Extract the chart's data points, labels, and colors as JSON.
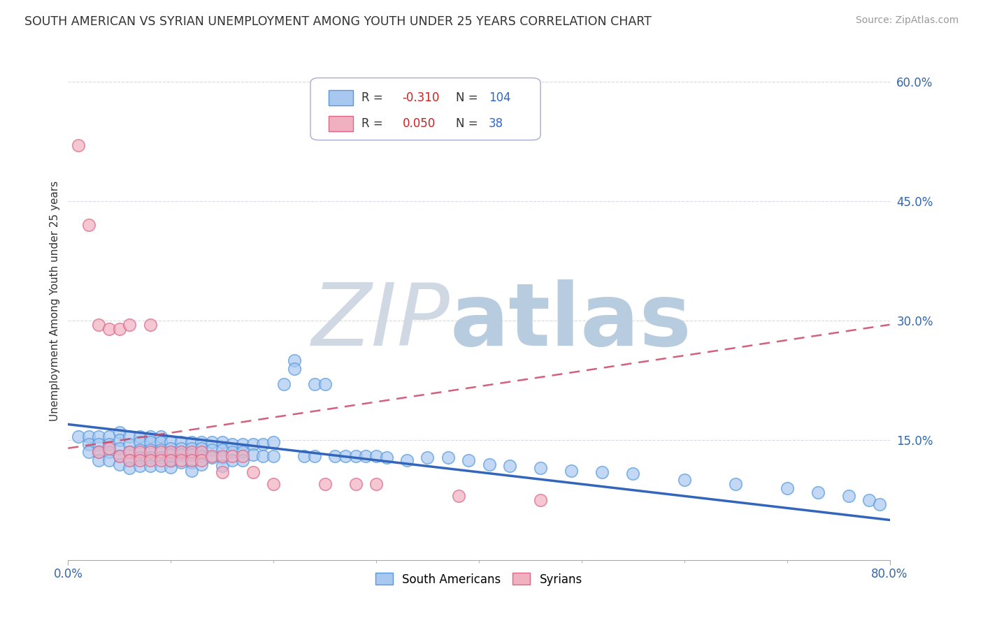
{
  "title": "SOUTH AMERICAN VS SYRIAN UNEMPLOYMENT AMONG YOUTH UNDER 25 YEARS CORRELATION CHART",
  "source": "Source: ZipAtlas.com",
  "ylabel": "Unemployment Among Youth under 25 years",
  "xlim": [
    0.0,
    0.8
  ],
  "ylim": [
    0.0,
    0.65
  ],
  "ytick_labels": [
    "60.0%",
    "45.0%",
    "30.0%",
    "15.0%"
  ],
  "ytick_vals": [
    0.6,
    0.45,
    0.3,
    0.15
  ],
  "grid_color": "#d8d8e8",
  "background_color": "#ffffff",
  "watermark_color_zip": "#d0d8e8",
  "watermark_color_atlas": "#b8cce0",
  "series": [
    {
      "name": "South Americans",
      "R": -0.31,
      "N": 104,
      "color": "#a8c8f0",
      "edge_color": "#5599dd",
      "trend_color": "#3366bb",
      "trend_dash": "solid"
    },
    {
      "name": "Syrians",
      "R": 0.05,
      "N": 38,
      "color": "#f0b0c0",
      "edge_color": "#dd6688",
      "trend_color": "#cc4466",
      "trend_dash": "dashed"
    }
  ],
  "sa_x": [
    0.01,
    0.02,
    0.02,
    0.02,
    0.03,
    0.03,
    0.03,
    0.03,
    0.04,
    0.04,
    0.04,
    0.04,
    0.05,
    0.05,
    0.05,
    0.05,
    0.05,
    0.06,
    0.06,
    0.06,
    0.06,
    0.06,
    0.07,
    0.07,
    0.07,
    0.07,
    0.07,
    0.08,
    0.08,
    0.08,
    0.08,
    0.08,
    0.09,
    0.09,
    0.09,
    0.09,
    0.09,
    0.1,
    0.1,
    0.1,
    0.1,
    0.1,
    0.11,
    0.11,
    0.11,
    0.11,
    0.12,
    0.12,
    0.12,
    0.12,
    0.12,
    0.13,
    0.13,
    0.13,
    0.13,
    0.14,
    0.14,
    0.14,
    0.15,
    0.15,
    0.15,
    0.15,
    0.16,
    0.16,
    0.16,
    0.17,
    0.17,
    0.17,
    0.18,
    0.18,
    0.19,
    0.19,
    0.2,
    0.2,
    0.21,
    0.22,
    0.22,
    0.23,
    0.24,
    0.24,
    0.25,
    0.26,
    0.27,
    0.28,
    0.29,
    0.3,
    0.31,
    0.33,
    0.35,
    0.37,
    0.39,
    0.41,
    0.43,
    0.46,
    0.49,
    0.52,
    0.55,
    0.6,
    0.65,
    0.7,
    0.73,
    0.76,
    0.78,
    0.79
  ],
  "sa_y": [
    0.155,
    0.155,
    0.145,
    0.135,
    0.155,
    0.145,
    0.135,
    0.125,
    0.155,
    0.145,
    0.135,
    0.125,
    0.16,
    0.15,
    0.14,
    0.13,
    0.12,
    0.155,
    0.145,
    0.135,
    0.125,
    0.115,
    0.155,
    0.148,
    0.138,
    0.128,
    0.118,
    0.155,
    0.148,
    0.138,
    0.128,
    0.118,
    0.155,
    0.148,
    0.138,
    0.128,
    0.118,
    0.148,
    0.14,
    0.132,
    0.124,
    0.116,
    0.148,
    0.14,
    0.132,
    0.122,
    0.148,
    0.14,
    0.132,
    0.122,
    0.112,
    0.148,
    0.14,
    0.13,
    0.12,
    0.148,
    0.138,
    0.128,
    0.148,
    0.138,
    0.128,
    0.118,
    0.145,
    0.135,
    0.125,
    0.145,
    0.135,
    0.125,
    0.145,
    0.132,
    0.145,
    0.13,
    0.148,
    0.13,
    0.22,
    0.25,
    0.24,
    0.13,
    0.22,
    0.13,
    0.22,
    0.13,
    0.13,
    0.13,
    0.13,
    0.13,
    0.128,
    0.125,
    0.128,
    0.128,
    0.125,
    0.12,
    0.118,
    0.115,
    0.112,
    0.11,
    0.108,
    0.1,
    0.095,
    0.09,
    0.085,
    0.08,
    0.075,
    0.07
  ],
  "sy_x": [
    0.01,
    0.02,
    0.03,
    0.03,
    0.04,
    0.04,
    0.05,
    0.05,
    0.06,
    0.06,
    0.06,
    0.07,
    0.07,
    0.08,
    0.08,
    0.08,
    0.09,
    0.09,
    0.1,
    0.1,
    0.11,
    0.11,
    0.12,
    0.12,
    0.13,
    0.13,
    0.14,
    0.15,
    0.15,
    0.16,
    0.17,
    0.18,
    0.2,
    0.25,
    0.28,
    0.3,
    0.38,
    0.46
  ],
  "sy_y": [
    0.52,
    0.42,
    0.295,
    0.135,
    0.29,
    0.14,
    0.29,
    0.13,
    0.295,
    0.135,
    0.125,
    0.135,
    0.125,
    0.295,
    0.135,
    0.125,
    0.135,
    0.125,
    0.135,
    0.125,
    0.135,
    0.125,
    0.135,
    0.125,
    0.135,
    0.125,
    0.13,
    0.13,
    0.11,
    0.13,
    0.13,
    0.11,
    0.095,
    0.095,
    0.095,
    0.095,
    0.08,
    0.075
  ],
  "sa_trend": [
    0.17,
    0.05
  ],
  "sy_trend": [
    0.14,
    0.295
  ]
}
